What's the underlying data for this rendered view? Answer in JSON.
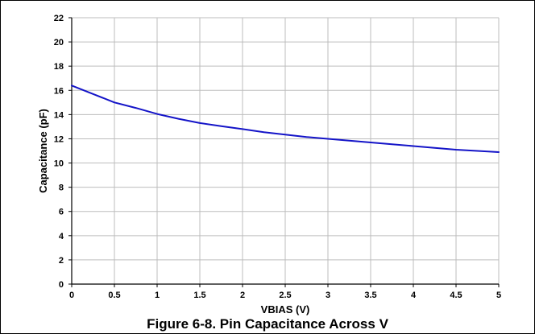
{
  "caption": "Figure 6-8. Pin Capacitance Across V",
  "chart_data": {
    "type": "line",
    "title": "",
    "xlabel": "VBIAS (V)",
    "ylabel": "Capacitance (pF)",
    "xlim": [
      0,
      5
    ],
    "ylim": [
      0,
      22
    ],
    "xticks": [
      "0",
      "0.5",
      "1",
      "1.5",
      "2",
      "2.5",
      "3",
      "3.5",
      "4",
      "4.5",
      "5"
    ],
    "yticks": [
      "0",
      "2",
      "4",
      "6",
      "8",
      "10",
      "12",
      "14",
      "16",
      "18",
      "20",
      "22"
    ],
    "grid": true,
    "line_color": "#1414c8",
    "series": [
      {
        "x": [
          0,
          0.25,
          0.5,
          0.75,
          1,
          1.25,
          1.5,
          1.75,
          2,
          2.25,
          2.5,
          2.75,
          3,
          3.25,
          3.5,
          3.75,
          4,
          4.25,
          4.5,
          4.75,
          5
        ],
        "y": [
          16.4,
          15.7,
          15.0,
          14.55,
          14.05,
          13.65,
          13.3,
          13.05,
          12.8,
          12.55,
          12.35,
          12.15,
          12.0,
          11.85,
          11.7,
          11.55,
          11.4,
          11.25,
          11.1,
          11.0,
          10.9
        ]
      }
    ]
  }
}
